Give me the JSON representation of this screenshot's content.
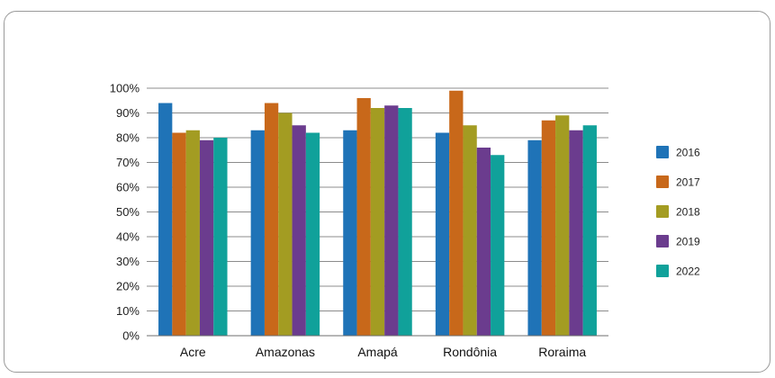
{
  "chart_data": {
    "type": "bar",
    "categories": [
      "Acre",
      "Amazonas",
      "Amapá",
      "Rondônia",
      "Roraima"
    ],
    "series": [
      {
        "name": "2016",
        "color": "#1f73b7",
        "values": [
          94,
          83,
          83,
          82,
          79
        ]
      },
      {
        "name": "2017",
        "color": "#c8681a",
        "values": [
          82,
          94,
          96,
          99,
          87
        ]
      },
      {
        "name": "2018",
        "color": "#a39c22",
        "values": [
          83,
          90,
          92,
          85,
          89
        ]
      },
      {
        "name": "2019",
        "color": "#6b3c8e",
        "values": [
          79,
          85,
          93,
          76,
          83
        ]
      },
      {
        "name": "2022",
        "color": "#10a19a",
        "values": [
          80,
          82,
          92,
          73,
          85
        ]
      }
    ],
    "yticks": [
      "0%",
      "10%",
      "20%",
      "30%",
      "40%",
      "50%",
      "60%",
      "70%",
      "80%",
      "90%",
      "100%"
    ],
    "ylim": [
      0,
      100
    ],
    "grid": true,
    "legend_position": "right"
  }
}
